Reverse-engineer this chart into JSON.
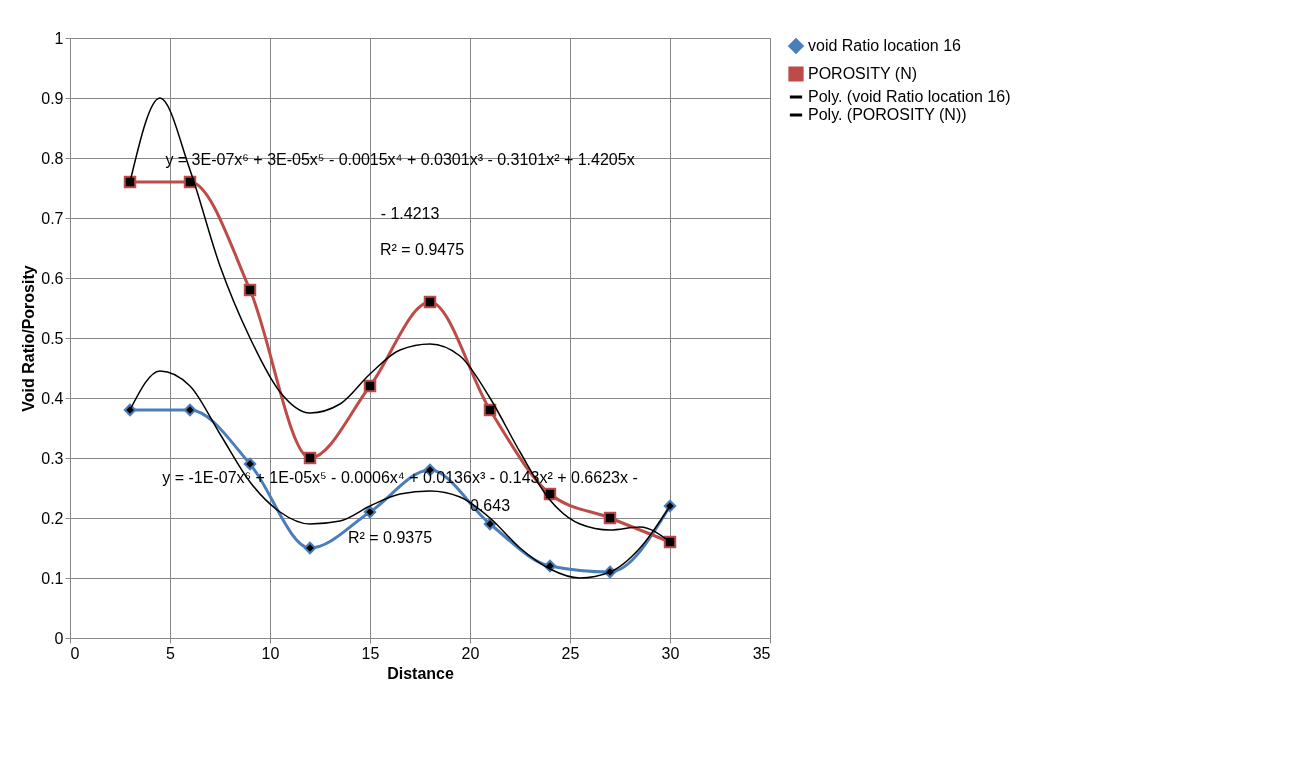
{
  "chart_data": {
    "type": "line",
    "xlabel": "Distance",
    "ylabel": "Void Ratio/Porosity",
    "x": [
      3,
      6,
      9,
      12,
      15,
      18,
      21,
      24,
      27,
      30
    ],
    "series": [
      {
        "name": "void Ratio location 16",
        "color": "#4a7ebb",
        "marker": "diamond",
        "values": [
          0.38,
          0.38,
          0.29,
          0.15,
          0.21,
          0.28,
          0.19,
          0.12,
          0.11,
          0.22
        ]
      },
      {
        "name": "POROSITY (N)",
        "color": "#be4b48",
        "marker": "square",
        "values": [
          0.76,
          0.76,
          0.58,
          0.3,
          0.42,
          0.56,
          0.38,
          0.24,
          0.2,
          0.16
        ]
      },
      {
        "name": "Poly. (void Ratio location 16)",
        "color": "#000000",
        "type": "line",
        "marker": "none",
        "x": [
          3,
          4.5,
          6,
          7.5,
          9,
          10.5,
          12,
          13.5,
          15,
          16.5,
          18,
          19.5,
          21,
          22.5,
          24,
          25.5,
          27,
          28.5,
          30
        ],
        "values": [
          0.38,
          0.445,
          0.42,
          0.34,
          0.26,
          0.21,
          0.19,
          0.195,
          0.22,
          0.24,
          0.245,
          0.235,
          0.2,
          0.15,
          0.115,
          0.1,
          0.11,
          0.15,
          0.22
        ]
      },
      {
        "name": "Poly. (POROSITY (N))",
        "color": "#000000",
        "type": "line",
        "marker": "none",
        "x": [
          3,
          4.5,
          6,
          7.5,
          9,
          10.5,
          12,
          13.5,
          15,
          16.5,
          18,
          19.5,
          21,
          22.5,
          24,
          25.5,
          27,
          28.5,
          30
        ],
        "values": [
          0.76,
          0.9,
          0.78,
          0.62,
          0.5,
          0.41,
          0.375,
          0.39,
          0.44,
          0.48,
          0.49,
          0.47,
          0.4,
          0.31,
          0.23,
          0.19,
          0.18,
          0.185,
          0.16
        ]
      }
    ],
    "xlim": [
      0,
      35
    ],
    "xticks": [
      0,
      5,
      10,
      15,
      20,
      25,
      30,
      35
    ],
    "ylim": [
      0,
      1
    ],
    "yticks": [
      0,
      0.1,
      0.2,
      0.3,
      0.4,
      0.5,
      0.6,
      0.7,
      0.8,
      0.9,
      1
    ],
    "grid": true,
    "legend": "right",
    "line_style": "solid",
    "annotations": [
      "y = 3E-07x⁶ + 3E-05x⁵ - 0.0015x⁴ + 0.0301x³ - 0.3101x² + 1.4205x",
      "- 1.4213",
      "R² = 0.9475",
      "y = -1E-07x⁶ + 1E-05x⁵ - 0.0006x⁴ + 0.0136x³ - 0.143x² + 0.6623x -",
      "0.643",
      "R² = 0.9375"
    ]
  }
}
